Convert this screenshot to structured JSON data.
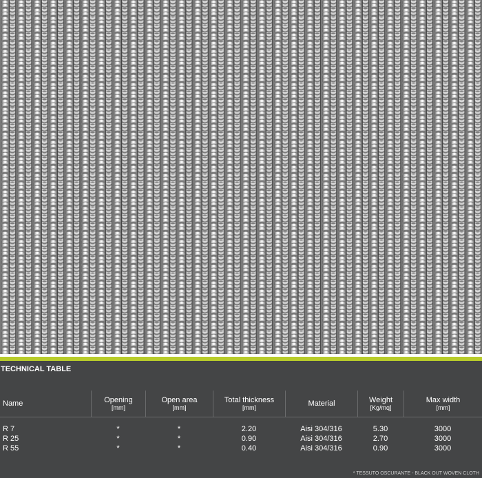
{
  "table": {
    "title": "TECHNICAL TABLE",
    "headers": [
      {
        "label": "Name",
        "unit": ""
      },
      {
        "label": "Opening",
        "unit": "[mm]"
      },
      {
        "label": "Open area",
        "unit": "[mm]"
      },
      {
        "label": "Total thickness",
        "unit": "[mm]"
      },
      {
        "label": "Material",
        "unit": ""
      },
      {
        "label": "Weight",
        "unit": "[Kg/mq]"
      },
      {
        "label": "Max width",
        "unit": "[mm]"
      }
    ],
    "rows": [
      [
        "R 7",
        "*",
        "*",
        "2.20",
        "Aisi 304/316",
        "5.30",
        "3000"
      ],
      [
        "R 25",
        "*",
        "*",
        "0.90",
        "Aisi 304/316",
        "2.70",
        "3000"
      ],
      [
        "R 55",
        "*",
        "*",
        "0.40",
        "Aisi 304/316",
        "0.90",
        "3000"
      ]
    ],
    "footnote": "* TESSUTO OSCURANTE - BLACK OUT WOVEN CLOTH"
  },
  "colors": {
    "panel_bg": "#444546",
    "accent": "#b8cc2a",
    "text": "#ffffff"
  }
}
